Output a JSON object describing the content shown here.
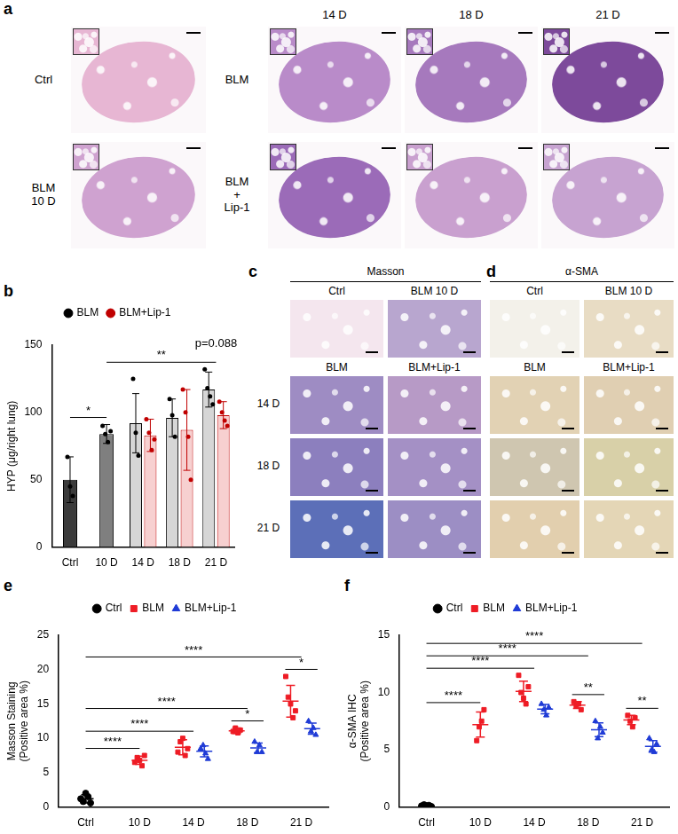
{
  "panel_labels": [
    "a",
    "b",
    "c",
    "d",
    "e",
    "f"
  ],
  "panel_a": {
    "column_headers": [
      "14 D",
      "18 D",
      "21 D"
    ],
    "row_labels": [
      [
        "Ctrl"
      ],
      [
        "BLM",
        "10 D"
      ]
    ],
    "group_labels": [
      [
        "BLM"
      ],
      [
        "BLM",
        "+",
        "Lip-1"
      ]
    ]
  },
  "panel_c": {
    "title": "Masson",
    "top_labels": [
      "Ctrl",
      "BLM 10 D"
    ],
    "group_labels": [
      "BLM",
      "BLM+Lip-1"
    ],
    "row_labels": [
      "14 D",
      "18 D",
      "21 D"
    ]
  },
  "panel_d": {
    "title": "α-SMA",
    "top_labels": [
      "Ctrl",
      "BLM 10 D"
    ],
    "group_labels": [
      "BLM",
      "BLM+Lip-1"
    ]
  },
  "chart_data": [
    {
      "type": "bar",
      "y_label": "HYP (μg/right lung)",
      "categories": [
        "Ctrl",
        "10 D",
        "14 D",
        "18 D",
        "21 D"
      ],
      "ylim": [
        0,
        150
      ],
      "yticks": [
        0,
        50,
        100,
        150
      ],
      "grid": false,
      "legend": "top",
      "series": [
        {
          "name": "BLM",
          "color": "#000000",
          "marker": "circle",
          "colors": [
            "#3b3b3b",
            "#7f7f7f",
            "#d6d6d6",
            "#d6d6d6",
            "#d6d6d6"
          ],
          "values": [
            50,
            84,
            92,
            96,
            117
          ],
          "error": [
            17,
            7,
            22,
            14,
            13
          ],
          "points": [
            [
              67,
              45,
              38
            ],
            [
              90,
              84,
              78,
              86
            ],
            [
              125,
              85,
              68
            ],
            [
              110,
              98,
              82
            ],
            [
              132,
              118,
              112,
              106
            ]
          ]
        },
        {
          "name": "BLM+Lip-1",
          "color": "#c00000",
          "marker": "circle",
          "colors": [
            null,
            null,
            "#f7d0d0",
            "#f7d0d0",
            "#f7d0d0"
          ],
          "values": [
            null,
            null,
            83,
            87,
            98
          ],
          "error": [
            null,
            null,
            12,
            30,
            10
          ],
          "points": [
            null,
            null,
            [
              95,
              85,
              72,
              80
            ],
            [
              117,
              100,
              82,
              50
            ],
            [
              108,
              100,
              94,
              90
            ]
          ]
        }
      ],
      "annotations": [
        {
          "text": "*",
          "from": "Ctrl",
          "to": "10 D"
        },
        {
          "text": "**",
          "from": "10 D",
          "to": "21 D"
        },
        {
          "text": "p=0.088",
          "at": "21 D"
        }
      ]
    },
    {
      "type": "scatter",
      "y_label": [
        "Masson Staining",
        "(Positive area %)"
      ],
      "categories": [
        "Ctrl",
        "10 D",
        "14 D",
        "18 D",
        "21 D"
      ],
      "ylim": [
        0,
        25
      ],
      "yticks": [
        0,
        5,
        10,
        15,
        20,
        25
      ],
      "grid": false,
      "legend": "top",
      "series": [
        {
          "name": "Ctrl",
          "color": "#000000",
          "marker": "circle",
          "values": [
            1.2,
            null,
            null,
            null,
            null
          ],
          "error": [
            0.6,
            null,
            null,
            null,
            null
          ],
          "points": [
            [
              1.2,
              0.8,
              2.0,
              1.5,
              0.6
            ],
            null,
            null,
            null,
            null
          ]
        },
        {
          "name": "BLM",
          "color": "#ee1c25",
          "marker": "square",
          "values": [
            null,
            6.8,
            8.7,
            11.1,
            15.4
          ],
          "error": [
            null,
            0.6,
            1.1,
            0.4,
            2.3
          ],
          "points": [
            null,
            [
              6.5,
              7.2,
              6.8,
              6.0,
              7.5
            ],
            [
              8.0,
              9.5,
              10.0,
              7.5,
              8.5
            ],
            [
              11.0,
              11.5,
              10.8,
              11.2
            ],
            [
              19.0,
              16.0,
              15.0,
              13.0,
              14.0
            ]
          ]
        },
        {
          "name": "BLM+Lip-1",
          "color": "#1f3bd6",
          "marker": "triangle",
          "values": [
            null,
            null,
            8.1,
            8.6,
            11.4
          ],
          "error": [
            null,
            null,
            0.8,
            0.7,
            0.8
          ],
          "points": [
            null,
            null,
            [
              8.5,
              9.0,
              7.8,
              7.0
            ],
            [
              9.5,
              8.0,
              9.0,
              8.0
            ],
            [
              12.5,
              11.0,
              11.5,
              10.5
            ]
          ]
        }
      ],
      "annotations": [
        {
          "text": "****",
          "from": "Ctrl",
          "to": "10 D"
        },
        {
          "text": "****",
          "from": "Ctrl",
          "to": "14 D"
        },
        {
          "text": "****",
          "from": "Ctrl",
          "to": "18 D"
        },
        {
          "text": "****",
          "from": "Ctrl",
          "to": "21 D"
        },
        {
          "text": "*",
          "category": "18 D"
        },
        {
          "text": "*",
          "category": "21 D"
        }
      ]
    },
    {
      "type": "scatter",
      "y_label": [
        "α-SMA IHC",
        "(Positive area %)"
      ],
      "categories": [
        "Ctrl",
        "10 D",
        "14 D",
        "18 D",
        "21 D"
      ],
      "ylim": [
        0,
        15
      ],
      "yticks": [
        0,
        5,
        10,
        15
      ],
      "grid": false,
      "legend": "top",
      "series": [
        {
          "name": "Ctrl",
          "color": "#000000",
          "marker": "circle",
          "values": [
            0.12,
            null,
            null,
            null,
            null
          ],
          "error": [
            0.06,
            null,
            null,
            null,
            null
          ],
          "points": [
            [
              0.1,
              0.2,
              0.1,
              0.15,
              0.05
            ],
            null,
            null,
            null,
            null
          ]
        },
        {
          "name": "BLM",
          "color": "#ee1c25",
          "marker": "square",
          "values": [
            null,
            7.2,
            10.1,
            8.9,
            7.6
          ],
          "error": [
            null,
            1.1,
            0.9,
            0.3,
            0.4
          ],
          "points": [
            null,
            [
              5.8,
              7.0,
              7.5,
              8.5
            ],
            [
              11.5,
              10.0,
              9.5,
              9.0,
              10.5
            ],
            [
              9.2,
              8.8,
              9.0,
              8.5
            ],
            [
              8.0,
              7.5,
              7.0,
              7.8
            ]
          ]
        },
        {
          "name": "BLM+Lip-1",
          "color": "#1f3bd6",
          "marker": "triangle",
          "values": [
            null,
            null,
            8.55,
            6.75,
            5.3
          ],
          "error": [
            null,
            null,
            0.4,
            0.6,
            0.5
          ],
          "points": [
            null,
            null,
            [
              9.0,
              8.5,
              8.0,
              8.7
            ],
            [
              7.5,
              6.0,
              7.0,
              6.5
            ],
            [
              6.0,
              5.0,
              4.8,
              5.5
            ]
          ]
        }
      ],
      "annotations": [
        {
          "text": "****",
          "from": "Ctrl",
          "to": "10 D"
        },
        {
          "text": "****",
          "from": "Ctrl",
          "to": "14 D"
        },
        {
          "text": "****",
          "from": "Ctrl",
          "to": "18 D"
        },
        {
          "text": "****",
          "from": "Ctrl",
          "to": "21 D"
        },
        {
          "text": "**",
          "category": "18 D"
        },
        {
          "text": "**",
          "category": "21 D"
        }
      ]
    }
  ]
}
